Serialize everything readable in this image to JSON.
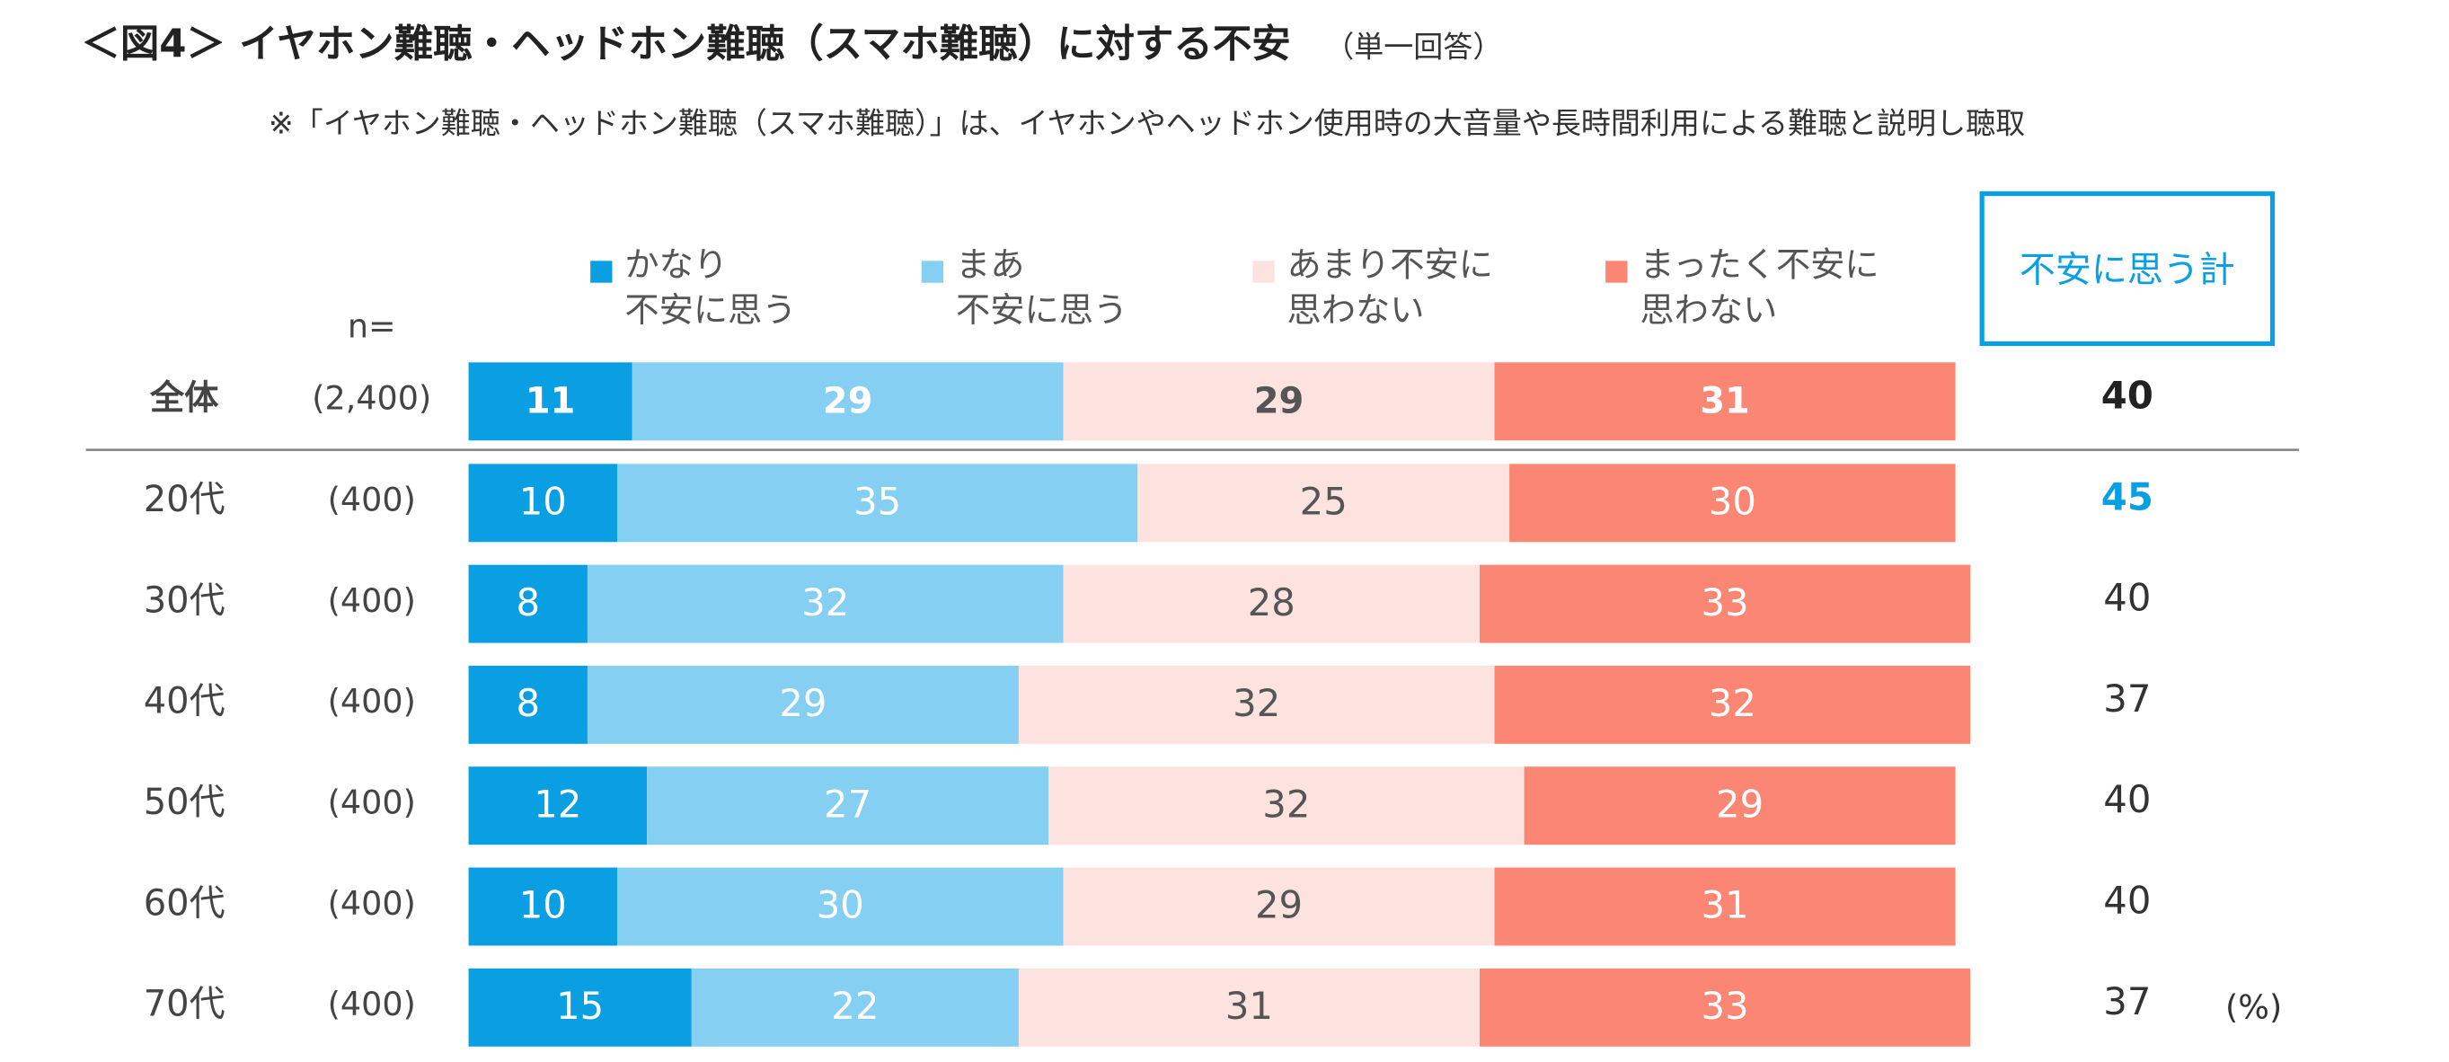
{
  "chart_data": {
    "type": "stacked-bar-horizontal",
    "title": "＜図4＞ イヤホン難聴・ヘッドホン難聴（スマホ難聴）に対する不安",
    "subtitle": "（単一回答）",
    "note": "※「イヤホン難聴・ヘッドホン難聴（スマホ難聴）」は、イヤホンやヘッドホン使用時の大音量や長時間利用による難聴と説明し聴取",
    "n_header": "n=",
    "unit": "(%)",
    "categories": [
      "全体",
      "20代",
      "30代",
      "40代",
      "50代",
      "60代",
      "70代"
    ],
    "n_labels": [
      "(2,400)",
      "(400)",
      "(400)",
      "(400)",
      "(400)",
      "(400)",
      "(400)"
    ],
    "series": [
      {
        "name": "かなり\n不安に思う",
        "color": "#0a9fe3",
        "values": [
          11,
          10,
          8,
          8,
          12,
          10,
          15
        ]
      },
      {
        "name": "まあ\n不安に思う",
        "color": "#84cff2",
        "values": [
          29,
          35,
          32,
          29,
          27,
          30,
          22
        ]
      },
      {
        "name": "あまり不安に\n思わない",
        "color": "#fde3df",
        "values": [
          29,
          25,
          28,
          32,
          32,
          29,
          31
        ]
      },
      {
        "name": "まったく不安に\n思わない",
        "color": "#fa8673",
        "values": [
          31,
          30,
          33,
          32,
          29,
          31,
          33
        ]
      }
    ],
    "totals": {
      "name": "不安に思う計",
      "values": [
        40,
        45,
        40,
        37,
        40,
        40,
        37
      ],
      "colors": [
        "#222222",
        "#0a9fe3",
        "#333333",
        "#333333",
        "#333333",
        "#333333",
        "#333333"
      ]
    }
  }
}
